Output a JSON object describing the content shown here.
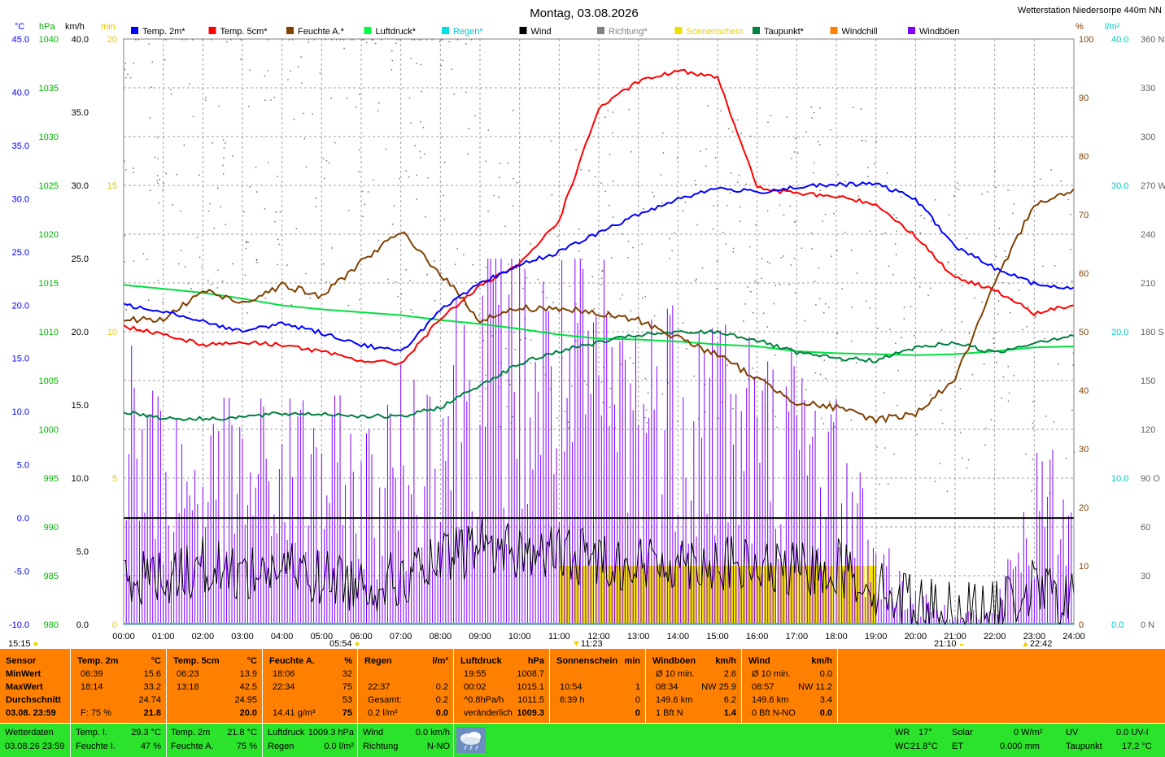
{
  "title": "Montag, 03.08.2026",
  "station": "Wetterstation Niedersorpe 440m NN",
  "units_left": [
    "°C",
    "hPa",
    "km/h",
    "min"
  ],
  "units_right": [
    "%",
    "l/m²"
  ],
  "legend": [
    {
      "label": "Temp. 2m*",
      "color": "#0000ff",
      "text_color": "#000000"
    },
    {
      "label": "Temp. 5cm*",
      "color": "#ff0000",
      "text_color": "#000000"
    },
    {
      "label": "Feuchte A.*",
      "color": "#804000",
      "text_color": "#000000"
    },
    {
      "label": "Luftdruck*",
      "color": "#00ff40",
      "text_color": "#000000"
    },
    {
      "label": "Regen*",
      "color": "#00e0e0",
      "text_color": "#00c8c8"
    },
    {
      "label": "Wind",
      "color": "#000000",
      "text_color": "#000000"
    },
    {
      "label": "Richtung*",
      "color": "#808080",
      "text_color": "#808080"
    },
    {
      "label": "Sonnenschein",
      "color": "#f0e000",
      "text_color": "#e8d000"
    },
    {
      "label": "Taupunkt*",
      "color": "#008040",
      "text_color": "#000000"
    },
    {
      "label": "Windchill",
      "color": "#ff8000",
      "text_color": "#000000"
    },
    {
      "label": "Windböen",
      "color": "#8000ff",
      "text_color": "#000000"
    }
  ],
  "axes": {
    "temp_c": [
      "45.0",
      "40.0",
      "35.0",
      "30.0",
      "25.0",
      "20.0",
      "15.0",
      "10.0",
      "5.0",
      "0.0",
      "-5.0",
      "-10.0"
    ],
    "hpa": [
      "1040",
      "1035",
      "1030",
      "1025",
      "1020",
      "1015",
      "1010",
      "1005",
      "1000",
      "995",
      "990",
      "985",
      "980"
    ],
    "kmh": [
      "40.0",
      "35.0",
      "30.0",
      "25.0",
      "20.0",
      "15.0",
      "10.0",
      "5.0",
      "0.0"
    ],
    "min": [
      "20",
      "15",
      "10",
      "5",
      "0"
    ],
    "percent": [
      "100",
      "90",
      "80",
      "70",
      "60",
      "50",
      "40",
      "30",
      "20",
      "10",
      "0"
    ],
    "rain": [
      "40.0",
      "30.0",
      "20.0",
      "10.0",
      "0.0"
    ],
    "direction": [
      "360 N",
      "330",
      "300",
      "270 W",
      "240",
      "210",
      "180 S",
      "150",
      "120",
      "90 O",
      "60",
      "30",
      "0 N"
    ],
    "x_ticks": [
      "00:00",
      "01:00",
      "02:00",
      "03:00",
      "04:00",
      "05:00",
      "06:00",
      "07:00",
      "08:00",
      "09:00",
      "10:00",
      "11:00",
      "12:00",
      "13:00",
      "14:00",
      "15:00",
      "16:00",
      "17:00",
      "18:00",
      "19:00",
      "20:00",
      "21:00",
      "22:00",
      "23:00",
      "24:00"
    ]
  },
  "markers": {
    "moonrise": "15:15",
    "sunrise": "05:54",
    "noon": "11:23",
    "sunset": "21:10",
    "moonset": "22:42"
  },
  "chart_data": {
    "type": "line",
    "x": [
      "00:00",
      "01:00",
      "02:00",
      "03:00",
      "04:00",
      "05:00",
      "06:00",
      "07:00",
      "08:00",
      "09:00",
      "10:00",
      "11:00",
      "12:00",
      "13:00",
      "14:00",
      "15:00",
      "16:00",
      "17:00",
      "18:00",
      "19:00",
      "20:00",
      "21:00",
      "22:00",
      "23:00",
      "24:00"
    ],
    "series": [
      {
        "name": "Temp. 2m*",
        "axis": "°C",
        "values": [
          20.0,
          19.5,
          18.5,
          17.5,
          18.3,
          17.4,
          16.3,
          15.6,
          19.5,
          22.0,
          23.8,
          25.0,
          26.8,
          28.5,
          30.0,
          31.0,
          30.6,
          31.1,
          31.3,
          31.4,
          30.0,
          25.5,
          23.5,
          22.0,
          21.5
        ]
      },
      {
        "name": "Temp. 5cm*",
        "axis": "°C",
        "values": [
          18.0,
          17.3,
          16.3,
          16.5,
          16.3,
          15.6,
          14.8,
          14.5,
          18.7,
          21.8,
          23.8,
          28.0,
          38.5,
          41.0,
          42.0,
          41.5,
          31.0,
          30.5,
          30.2,
          29.5,
          26.5,
          22.5,
          21.5,
          19.2,
          20.0
        ]
      },
      {
        "name": "Feuchte A.*",
        "axis": "%",
        "values": [
          52,
          52,
          57,
          55,
          58,
          56,
          62,
          67,
          60,
          52,
          54,
          54,
          53,
          52,
          49,
          46,
          42,
          38,
          37,
          35,
          36,
          42,
          58,
          72,
          74
        ]
      },
      {
        "name": "Luftdruck*",
        "axis": "hPa",
        "values": [
          1014.8,
          1014.4,
          1014.0,
          1013.4,
          1012.7,
          1012.3,
          1012.0,
          1011.7,
          1011.2,
          1010.8,
          1010.3,
          1009.7,
          1009.3,
          1009.2,
          1009.0,
          1008.7,
          1008.5,
          1008.0,
          1007.8,
          1007.7,
          1007.6,
          1007.7,
          1008.0,
          1008.4,
          1008.5
        ]
      },
      {
        "name": "Taupunkt*",
        "axis": "°C",
        "values": [
          10.0,
          9.4,
          9.3,
          9.5,
          9.8,
          9.8,
          9.6,
          9.5,
          10.4,
          12.5,
          14.5,
          15.7,
          16.5,
          17.2,
          17.4,
          17.5,
          16.7,
          15.5,
          15.0,
          14.8,
          16.0,
          16.5,
          15.5,
          16.5,
          17.2
        ]
      },
      {
        "name": "Wind",
        "axis": "km/h",
        "values": [
          3.5,
          3.2,
          4.0,
          3.5,
          3.8,
          3.2,
          2.8,
          3.0,
          4.2,
          5.5,
          5.0,
          4.8,
          4.6,
          4.0,
          4.4,
          4.2,
          3.8,
          3.6,
          4.0,
          2.5,
          1.5,
          1.0,
          1.0,
          2.5,
          1.5
        ]
      },
      {
        "name": "Windböen",
        "axis": "km/h",
        "values": [
          18,
          14,
          13,
          13,
          14,
          14,
          12,
          15,
          18,
          25,
          24,
          22,
          22,
          20,
          21,
          21,
          17,
          17,
          14,
          6,
          2,
          1,
          1,
          11,
          9
        ]
      },
      {
        "name": "Sonnenschein",
        "axis": "min",
        "values": [
          0,
          0,
          0,
          0,
          0,
          0,
          0,
          0,
          0,
          0,
          0,
          1,
          1,
          1,
          1,
          1,
          1,
          1,
          1,
          0.5,
          0,
          0,
          0,
          0,
          0
        ]
      }
    ],
    "reference_lines": [
      {
        "axis": "°C",
        "value": 0.0
      }
    ],
    "ylim_temp": [
      -10,
      45
    ],
    "ylim_hpa": [
      980,
      1040
    ],
    "ylim_kmh": [
      0,
      40
    ],
    "ylim_min": [
      0,
      20
    ],
    "ylim_percent": [
      0,
      100
    ],
    "ylim_rain": [
      0,
      40
    ],
    "ylim_direction": [
      0,
      360
    ],
    "grid": true,
    "legend_position": "top"
  },
  "table": {
    "headers": [
      {
        "label": "Sensor",
        "unit": ""
      },
      {
        "label": "Temp. 2m",
        "unit": "°C"
      },
      {
        "label": "Temp. 5cm",
        "unit": "°C"
      },
      {
        "label": "Feuchte A.",
        "unit": "%"
      },
      {
        "label": "Regen",
        "unit": "l/m²"
      },
      {
        "label": "Luftdruck",
        "unit": "hPa"
      },
      {
        "label": "Sonnenschein",
        "unit": "min"
      },
      {
        "label": "Windböen",
        "unit": "km/h"
      },
      {
        "label": "Wind",
        "unit": "km/h"
      }
    ],
    "row_labels": [
      "MinWert",
      "MaxWert",
      "Durchschnitt",
      "03.08. 23:59"
    ],
    "temp2m": [
      [
        "06:39",
        "15.6"
      ],
      [
        "18:14",
        "33.2"
      ],
      [
        "",
        "24.74"
      ],
      [
        "F: 75 %",
        "21.8"
      ]
    ],
    "temp5cm": [
      [
        "06:23",
        "13.9"
      ],
      [
        "13:18",
        "42.5"
      ],
      [
        "",
        "24.95"
      ],
      [
        "",
        "20.0"
      ]
    ],
    "feuchte": [
      [
        "18:06",
        "32"
      ],
      [
        "22:34",
        "75"
      ],
      [
        "",
        "53"
      ],
      [
        "14.41 g/m³",
        "75"
      ]
    ],
    "regen": [
      [
        "",
        ""
      ],
      [
        "22:37",
        "0.2"
      ],
      [
        "Gesamt:",
        "0.2"
      ],
      [
        "0.2 l/m²",
        "0.0"
      ]
    ],
    "luftdruck": [
      [
        "19:55",
        "1008.7"
      ],
      [
        "00:02",
        "1015.1"
      ],
      [
        "^0.8hPa/h",
        "1011.5"
      ],
      [
        "veränderlich",
        "1009.3"
      ]
    ],
    "sonne": [
      [
        "",
        ""
      ],
      [
        "10:54",
        "1"
      ],
      [
        "6:39 h",
        "0"
      ],
      [
        "",
        "0"
      ]
    ],
    "boeen": [
      [
        "Ø 10 min.",
        "2.6"
      ],
      [
        "08:34",
        "NW 25.9"
      ],
      [
        "149.6 km",
        "6.2"
      ],
      [
        "1 Bft N",
        "1.4"
      ]
    ],
    "wind": [
      [
        "Ø 10 min.",
        "0.0"
      ],
      [
        "08:57",
        "NW 11.2"
      ],
      [
        "149.6 km",
        "3.4"
      ],
      [
        "0 Bft N-NO",
        "0.0"
      ]
    ]
  },
  "footer": {
    "wetterdaten": "Wetterdaten",
    "datetime": "03.08.26 23:59",
    "temp_i_label": "Temp. I.",
    "temp_i": "29.3 °C",
    "feuchte_i_label": "Feuchte I.",
    "feuchte_i": "47 %",
    "temp2m_label": "Temp. 2m",
    "temp2m": "21.8 °C",
    "feuchte_a_label": "Feuchte A.",
    "feuchte_a": "75 %",
    "luftdruck_label": "Luftdruck",
    "luftdruck": "1009.3 hPa",
    "regen_label": "Regen",
    "regen": "0.0 l/m²",
    "wind_label": "Wind",
    "wind": "0.0 km/h",
    "richtung_label": "Richtung",
    "richtung": "N-NO",
    "wr_label": "WR",
    "wr": "17°",
    "wc_label": "WC",
    "wc": "21.8°C",
    "solar_label": "Solar",
    "solar": "0 W/m²",
    "et_label": "ET",
    "et": "0.000 mm",
    "uv_label": "UV",
    "uv": "0.0 UV-I",
    "taupunkt_label": "Taupunkt",
    "taupunkt": "17.2 °C"
  }
}
